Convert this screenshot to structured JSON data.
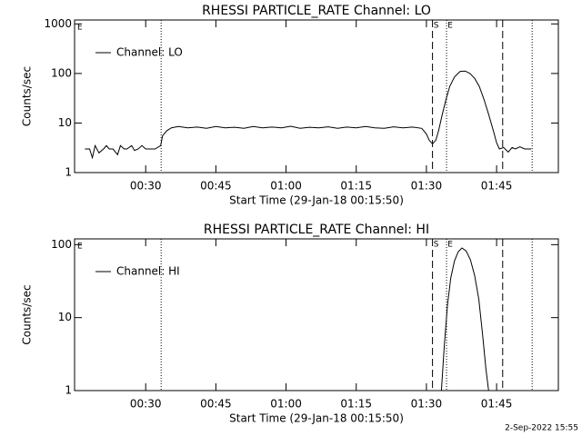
{
  "chart_data": [
    {
      "type": "line",
      "title": "RHESSI PARTICLE_RATE Channel: LO",
      "xlabel": "Start Time (29-Jan-18 00:15:50)",
      "ylabel": "Counts/sec",
      "log_y": true,
      "xlim": [
        14.8,
        118.2
      ],
      "ylim": [
        1,
        1200
      ],
      "xticks": [
        {
          "value": 30,
          "label": "00:30"
        },
        {
          "value": 45,
          "label": "00:45"
        },
        {
          "value": 60,
          "label": "01:00"
        },
        {
          "value": 75,
          "label": "01:15"
        },
        {
          "value": 90,
          "label": "01:30"
        },
        {
          "value": 105,
          "label": "01:45"
        }
      ],
      "yticks": [
        1,
        10,
        100,
        1000
      ],
      "corner_label": "E",
      "legend": "upper left",
      "vlines": [
        {
          "value": 33.3,
          "style": "dotted"
        },
        {
          "value": 91.3,
          "style": "dashed"
        },
        {
          "value": 94.3,
          "style": "dotted"
        },
        {
          "value": 106.3,
          "style": "dashed"
        },
        {
          "value": 112.6,
          "style": "dotted"
        }
      ],
      "annotations": [
        {
          "text": "S",
          "x": 91.3
        },
        {
          "text": "E",
          "x": 94.3
        }
      ],
      "series": [
        {
          "name": "Channel: LO",
          "color": "#000000",
          "x": [
            17,
            18,
            18.6,
            19.2,
            20,
            21,
            21.6,
            22.2,
            23,
            24,
            24.6,
            25.4,
            26,
            27,
            27.6,
            28.4,
            29.2,
            30,
            31,
            32,
            33.2,
            33.6,
            34.5,
            35.5,
            37,
            39,
            41,
            43,
            45,
            47,
            49,
            51,
            53,
            55,
            57,
            59,
            61,
            63,
            65,
            67,
            69,
            71,
            73,
            75,
            77,
            79,
            81,
            83,
            85,
            87,
            89,
            90,
            90.6,
            91.3,
            92,
            92.6,
            93.4,
            94.2,
            95,
            96,
            97.2,
            98.3,
            99.3,
            100.3,
            101.3,
            102.3,
            103.3,
            104.3,
            105,
            105.6,
            106.5,
            107.5,
            108.3,
            109,
            110,
            111,
            112.4
          ],
          "values": [
            3,
            3,
            2,
            3.5,
            2.5,
            3,
            3.5,
            3,
            3,
            2.3,
            3.5,
            3,
            3,
            3.5,
            2.8,
            3,
            3.5,
            3,
            3,
            3,
            3.5,
            5.5,
            7,
            8,
            8.5,
            8,
            8.3,
            7.8,
            8.5,
            8,
            8.2,
            7.8,
            8.5,
            8,
            8.3,
            8,
            8.6,
            7.8,
            8.2,
            8,
            8.4,
            7.8,
            8.3,
            8,
            8.5,
            8,
            7.8,
            8.4,
            8,
            8.3,
            7.8,
            6,
            4.5,
            3.8,
            4.5,
            7,
            15,
            30,
            55,
            85,
            110,
            112,
            100,
            80,
            55,
            30,
            15,
            7,
            4,
            3,
            3.2,
            2.6,
            3.2,
            3,
            3.3,
            3,
            3
          ]
        }
      ]
    },
    {
      "type": "line",
      "title": "RHESSI PARTICLE_RATE Channel: HI",
      "xlabel": "Start Time (29-Jan-18 00:15:50)",
      "ylabel": "Counts/sec",
      "log_y": true,
      "xlim": [
        14.8,
        118.2
      ],
      "ylim": [
        1,
        120
      ],
      "xticks": [
        {
          "value": 30,
          "label": "00:30"
        },
        {
          "value": 45,
          "label": "00:45"
        },
        {
          "value": 60,
          "label": "01:00"
        },
        {
          "value": 75,
          "label": "01:15"
        },
        {
          "value": 90,
          "label": "01:30"
        },
        {
          "value": 105,
          "label": "01:45"
        }
      ],
      "yticks": [
        1,
        10,
        100
      ],
      "corner_label": "E",
      "legend": "upper left",
      "vlines": [
        {
          "value": 33.3,
          "style": "dotted"
        },
        {
          "value": 91.3,
          "style": "dashed"
        },
        {
          "value": 94.3,
          "style": "dotted"
        },
        {
          "value": 106.3,
          "style": "dashed"
        },
        {
          "value": 112.6,
          "style": "dotted"
        }
      ],
      "annotations": [
        {
          "text": "S",
          "x": 91.3
        },
        {
          "text": "E",
          "x": 94.3
        }
      ],
      "series": [
        {
          "name": "Channel: HI",
          "color": "#000000",
          "x": [
            93.2,
            93.8,
            94.5,
            95.2,
            96,
            96.8,
            97.6,
            98.5,
            99.4,
            100.3,
            101.2,
            102,
            102.7,
            103.3
          ],
          "values": [
            1,
            4,
            15,
            35,
            60,
            80,
            90,
            82,
            62,
            38,
            18,
            6,
            2,
            1
          ]
        }
      ]
    }
  ],
  "footer": "2-Sep-2022 15:55"
}
